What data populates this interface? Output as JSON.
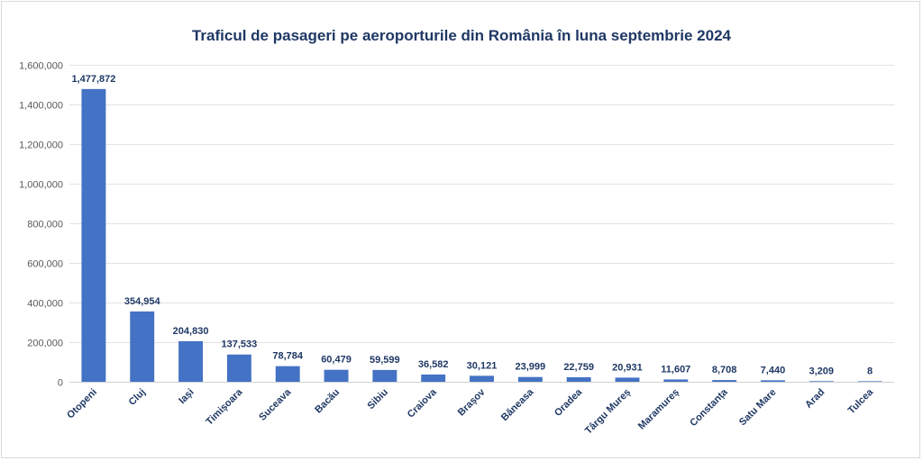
{
  "chart_data": {
    "type": "bar",
    "title": "Traficul de pasageri pe aeroporturile din România în luna septembrie 2024",
    "xlabel": "",
    "ylabel": "",
    "categories": [
      "Otopeni",
      "Cluj",
      "Iași",
      "Timișoara",
      "Suceava",
      "Bacău",
      "Sibiu",
      "Craiova",
      "Brașov",
      "Băneasa",
      "Oradea",
      "Târgu Mureș",
      "Maramureș",
      "Constanța",
      "Satu Mare",
      "Arad",
      "Tulcea"
    ],
    "values": [
      1477872,
      354954,
      204830,
      137533,
      78784,
      60479,
      59599,
      36582,
      30121,
      23999,
      22759,
      20931,
      11607,
      8708,
      7440,
      3209,
      8
    ],
    "value_labels": [
      "1,477,872",
      "354,954",
      "204,830",
      "137,533",
      "78,784",
      "60,479",
      "59,599",
      "36,582",
      "30,121",
      "23,999",
      "22,759",
      "20,931",
      "11,607",
      "8,708",
      "7,440",
      "3,209",
      "8"
    ],
    "ylim": [
      0,
      1600000
    ],
    "yticks": [
      0,
      200000,
      400000,
      600000,
      800000,
      1000000,
      1200000,
      1400000,
      1600000
    ],
    "ytick_labels": [
      "0",
      "200,000",
      "400,000",
      "600,000",
      "800,000",
      "1,000,000",
      "1,200,000",
      "1,400,000",
      "1,600,000"
    ],
    "grid": true,
    "bar_color": "#4472c4",
    "label_color": "#1f3864"
  }
}
